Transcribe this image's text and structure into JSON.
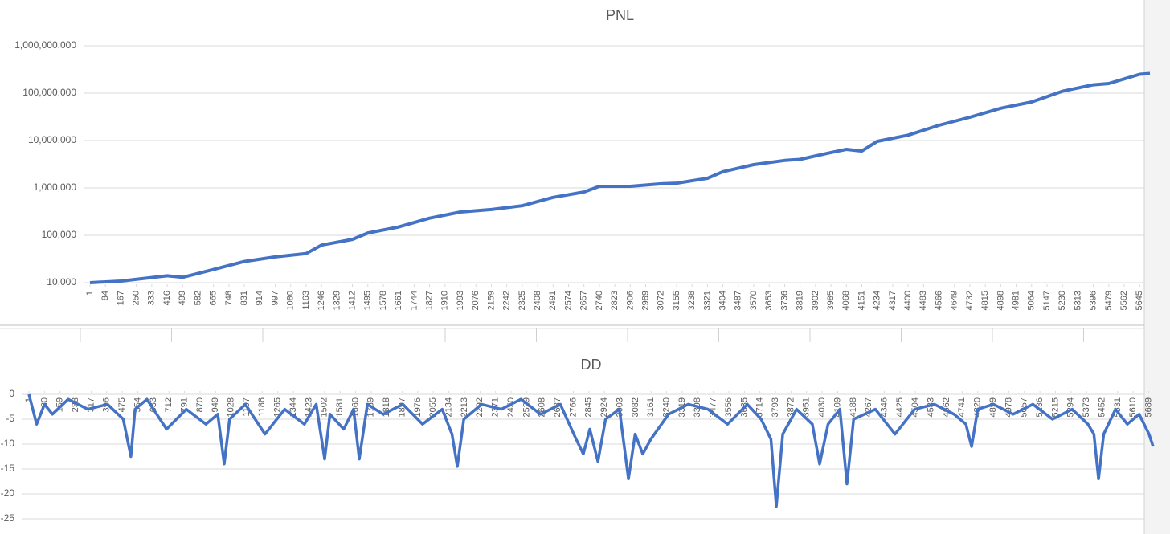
{
  "chart_data": [
    {
      "type": "line",
      "title": "PNL",
      "log_scale": true,
      "grid": true,
      "color": "#4472c4",
      "x": [
        1,
        167,
        416,
        499,
        665,
        831,
        997,
        1163,
        1246,
        1412,
        1495,
        1661,
        1827,
        1993,
        2159,
        2325,
        2491,
        2657,
        2740,
        2906,
        3072,
        3155,
        3321,
        3404,
        3570,
        3736,
        3819,
        3985,
        4068,
        4151,
        4234,
        4400,
        4566,
        4732,
        4898,
        5064,
        5230,
        5396,
        5479,
        5645,
        5700
      ],
      "values": [
        10000,
        10800,
        14000,
        13000,
        19000,
        28000,
        35000,
        41000,
        62000,
        82000,
        112000,
        150000,
        230000,
        310000,
        350000,
        420000,
        630000,
        820000,
        1080000,
        1080000,
        1220000,
        1260000,
        1600000,
        2200000,
        3100000,
        3800000,
        4000000,
        5600000,
        6500000,
        6000000,
        9600000,
        13000000,
        21000000,
        31000000,
        48000000,
        65000000,
        110000000,
        150000000,
        160000000,
        250000000,
        260000000
      ],
      "xlim": [
        1,
        5700
      ],
      "xticks": [
        1,
        84,
        167,
        250,
        333,
        416,
        499,
        582,
        665,
        748,
        831,
        914,
        997,
        1080,
        1163,
        1246,
        1329,
        1412,
        1495,
        1578,
        1661,
        1744,
        1827,
        1910,
        1993,
        2076,
        2159,
        2242,
        2325,
        2408,
        2491,
        2574,
        2657,
        2740,
        2823,
        2906,
        2989,
        3072,
        3155,
        3238,
        3321,
        3404,
        3487,
        3570,
        3653,
        3736,
        3819,
        3902,
        3985,
        4068,
        4151,
        4234,
        4317,
        4400,
        4483,
        4566,
        4649,
        4732,
        4815,
        4898,
        4981,
        5064,
        5147,
        5230,
        5313,
        5396,
        5479,
        5562,
        5645
      ],
      "ylim": [
        10000,
        1000000000
      ],
      "yticks": [
        {
          "value": 10000,
          "label": "10,000"
        },
        {
          "value": 100000,
          "label": "100,000"
        },
        {
          "value": 1000000,
          "label": "1,000,000"
        },
        {
          "value": 10000000,
          "label": "10,000,000"
        },
        {
          "value": 100000000,
          "label": "100,000,000"
        },
        {
          "value": 1000000000,
          "label": "1,000,000,000"
        }
      ]
    },
    {
      "type": "line",
      "title": "DD",
      "log_scale": false,
      "grid": true,
      "color": "#4472c4",
      "x": [
        1,
        40,
        80,
        120,
        200,
        300,
        400,
        480,
        519,
        540,
        600,
        700,
        800,
        900,
        960,
        993,
        1020,
        1100,
        1200,
        1300,
        1400,
        1460,
        1503,
        1530,
        1600,
        1650,
        1679,
        1720,
        1800,
        1900,
        2000,
        2100,
        2150,
        2177,
        2210,
        2300,
        2400,
        2500,
        2600,
        2700,
        2780,
        2817,
        2850,
        2891,
        2930,
        3000,
        3046,
        3080,
        3119,
        3160,
        3250,
        3350,
        3450,
        3550,
        3650,
        3720,
        3770,
        3797,
        3830,
        3900,
        3980,
        4017,
        4060,
        4120,
        4156,
        4190,
        4300,
        4400,
        4500,
        4600,
        4700,
        4760,
        4789,
        4820,
        4900,
        5000,
        5100,
        5200,
        5300,
        5380,
        5410,
        5434,
        5460,
        5520,
        5580,
        5640,
        5690,
        5711
      ],
      "values": [
        0,
        -6,
        -2,
        -4,
        -1,
        -3,
        -2,
        -5,
        -12.5,
        -3,
        -1,
        -7,
        -3,
        -6,
        -4,
        -14,
        -5,
        -2,
        -8,
        -3,
        -6,
        -2,
        -13,
        -4,
        -7,
        -3,
        -13,
        -2,
        -4,
        -2,
        -6,
        -3,
        -8,
        -14.5,
        -5,
        -2,
        -3,
        -1,
        -4,
        -2,
        -9,
        -12,
        -7,
        -13.5,
        -5,
        -3,
        -17,
        -8,
        -12,
        -9,
        -4,
        -2,
        -3,
        -6,
        -2,
        -5,
        -9,
        -22.5,
        -8,
        -3,
        -6,
        -14,
        -6,
        -3,
        -18,
        -5,
        -3,
        -8,
        -3,
        -2,
        -4,
        -6,
        -10.5,
        -3,
        -2,
        -4,
        -2,
        -5,
        -3,
        -6,
        -8,
        -17,
        -8,
        -3,
        -6,
        -4,
        -8,
        -10.5
      ],
      "xlim": [
        1,
        5711
      ],
      "xticks": [
        1,
        80,
        159,
        238,
        317,
        396,
        475,
        554,
        633,
        712,
        791,
        870,
        949,
        1028,
        1107,
        1186,
        1265,
        1344,
        1423,
        1502,
        1581,
        1660,
        1739,
        1818,
        1897,
        1976,
        2055,
        2134,
        2213,
        2292,
        2371,
        2450,
        2529,
        2608,
        2687,
        2766,
        2845,
        2924,
        3003,
        3082,
        3161,
        3240,
        3319,
        3398,
        3477,
        3556,
        3635,
        3714,
        3793,
        3872,
        3951,
        4030,
        4109,
        4188,
        4267,
        4346,
        4425,
        4504,
        4583,
        4662,
        4741,
        4820,
        4899,
        4978,
        5057,
        5136,
        5215,
        5294,
        5373,
        5452,
        5531,
        5610,
        5689
      ],
      "ylim": [
        -25,
        0
      ],
      "yticks": [
        0,
        -5,
        -10,
        -15,
        -20,
        -25
      ]
    }
  ]
}
